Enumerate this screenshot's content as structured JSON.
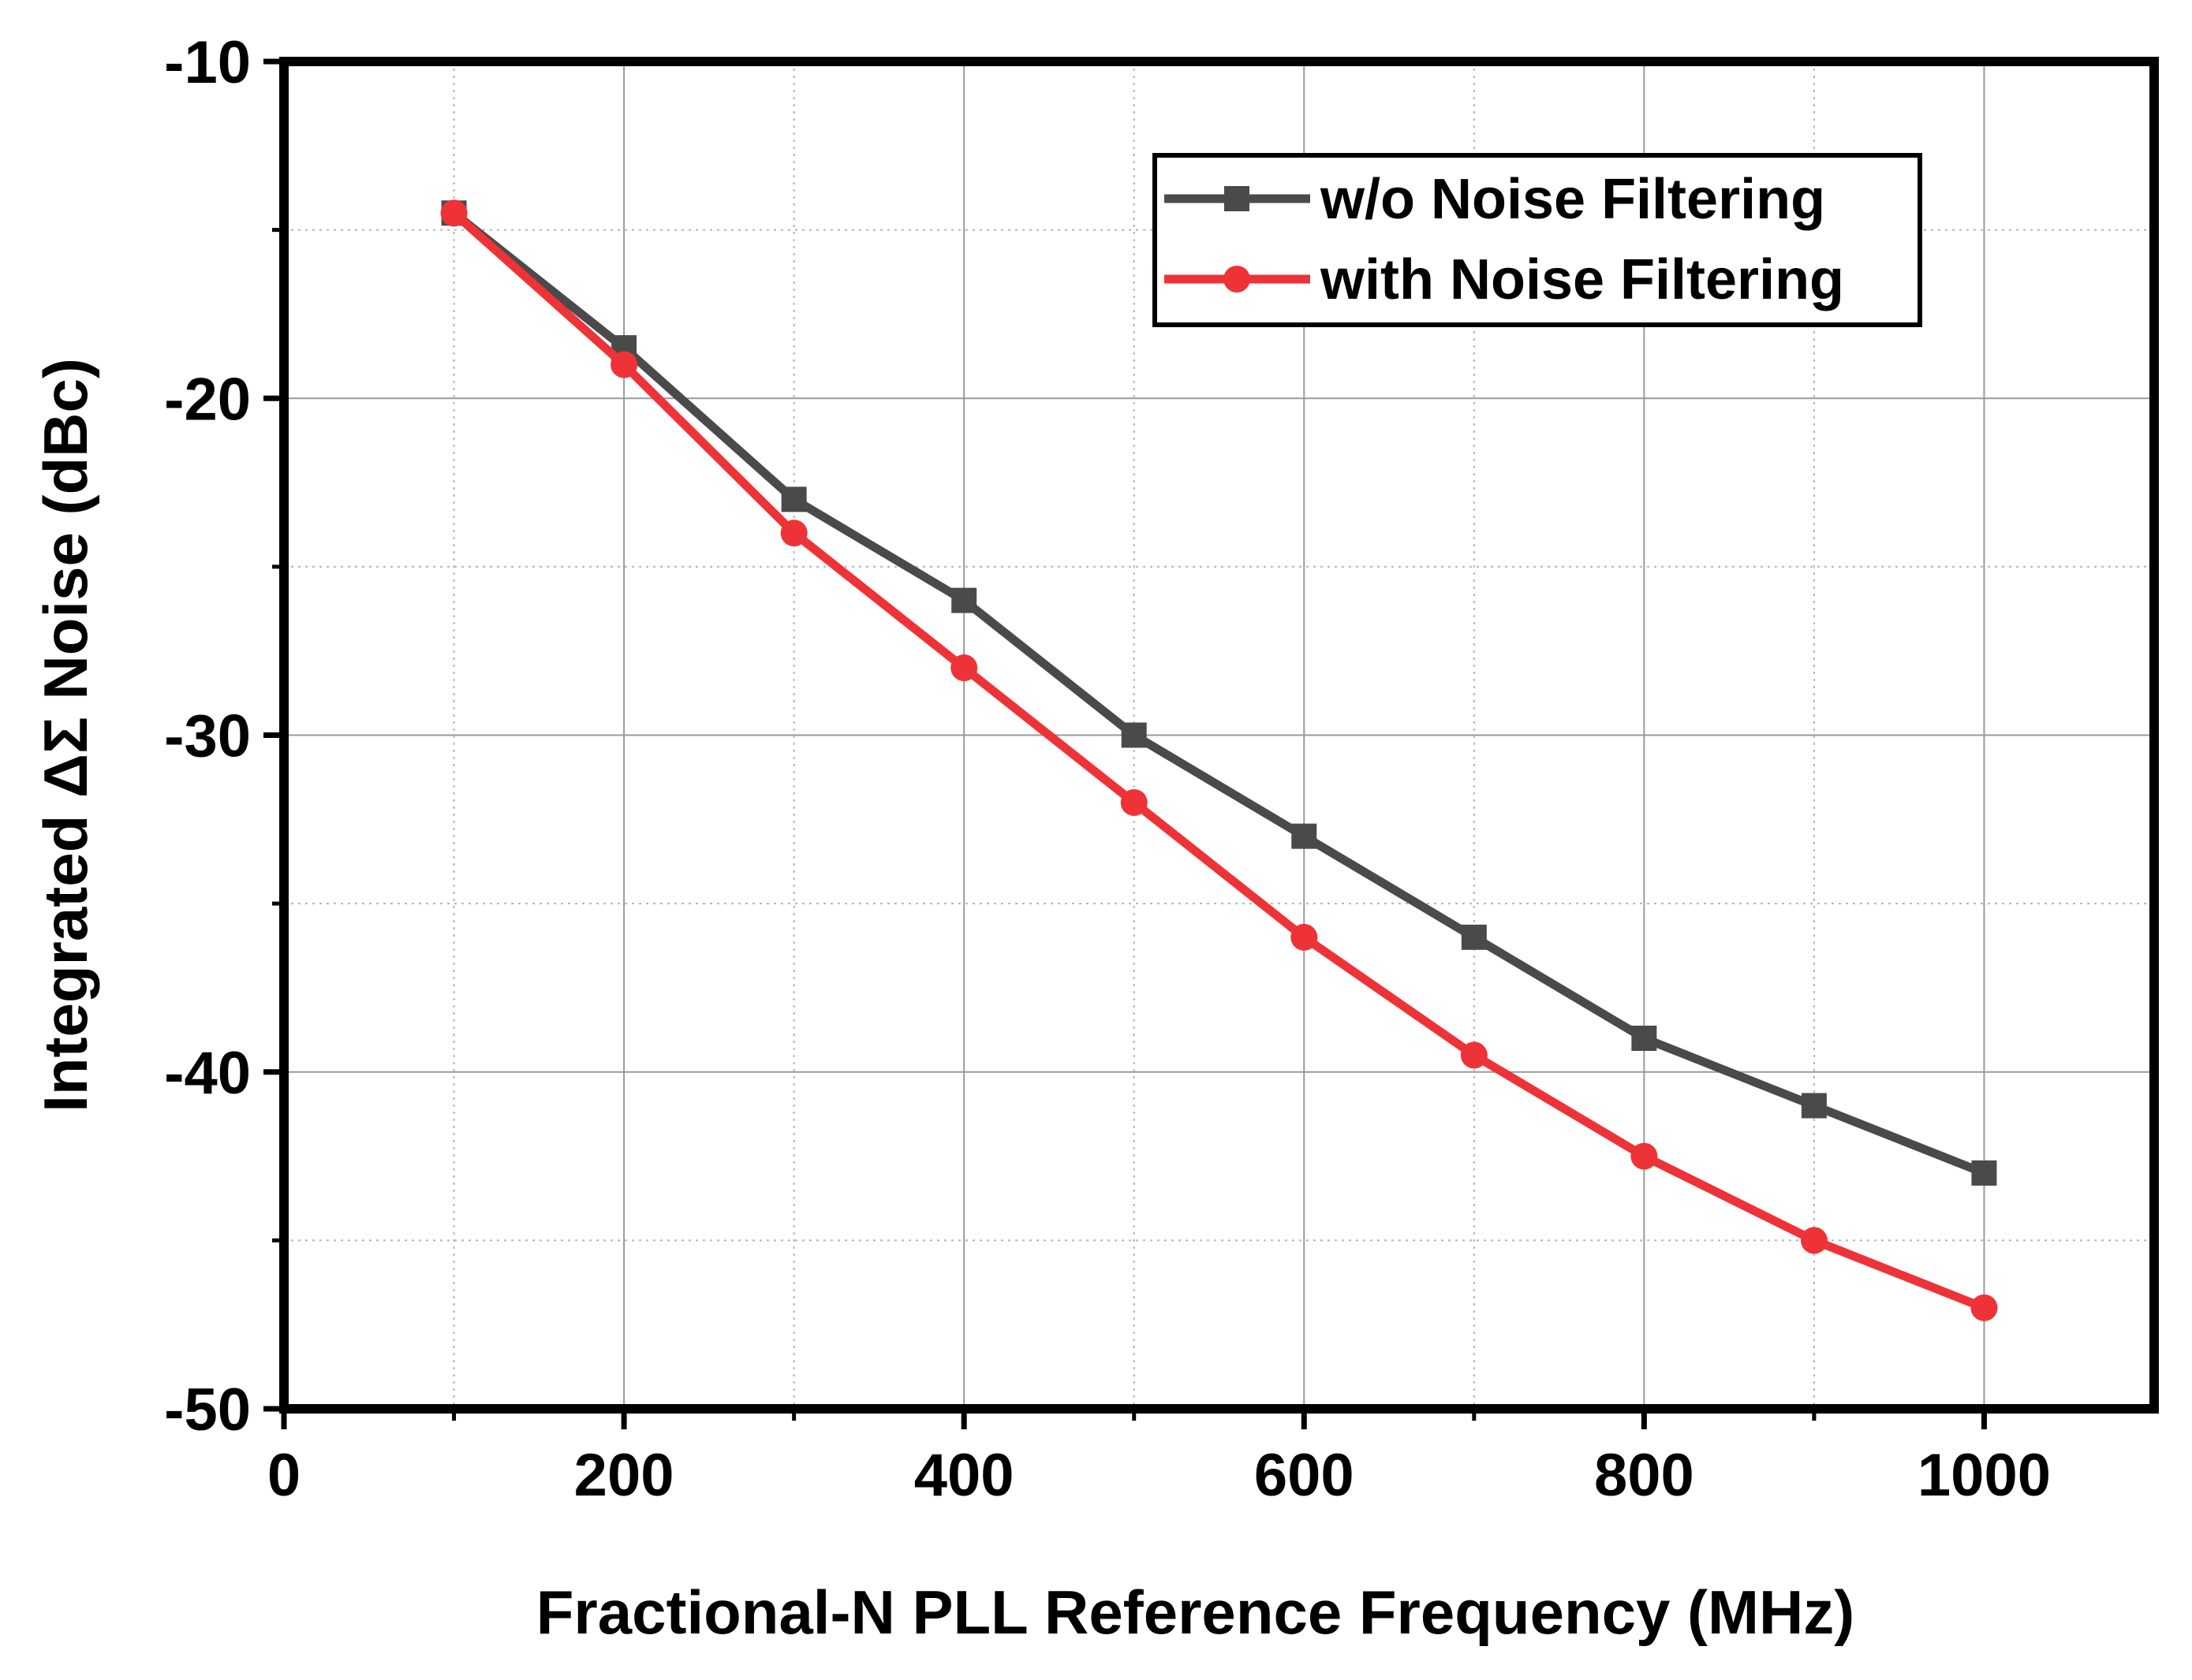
{
  "chart_data": {
    "type": "line",
    "title": "",
    "xlabel": "Fractional-N PLL Reference Frequency (MHz)",
    "ylabel": "Integrated ΔΣ Noise (dBc)",
    "xlim": [
      0,
      1100
    ],
    "ylim": [
      -50,
      -10
    ],
    "xticks": [
      0,
      200,
      400,
      600,
      800,
      1000
    ],
    "yticks": [
      -50,
      -40,
      -30,
      -20,
      -10
    ],
    "x_minor_grid": [
      100,
      300,
      500,
      700,
      900
    ],
    "y_minor_grid": [
      -45,
      -35,
      -25,
      -15
    ],
    "grid": true,
    "legend_position": "top-right",
    "x": [
      100,
      200,
      300,
      400,
      500,
      600,
      700,
      800,
      900,
      1000
    ],
    "series": [
      {
        "name": "w/o Noise Filtering",
        "color": "#4a4a4a",
        "marker": "square",
        "values": [
          -14.5,
          -18.5,
          -23,
          -26,
          -30,
          -33,
          -36,
          -39,
          -41,
          -43
        ]
      },
      {
        "name": "with Noise Filtering",
        "color": "#ee3338",
        "marker": "circle",
        "values": [
          -14.5,
          -19,
          -24,
          -28,
          -32,
          -36,
          -39.5,
          -42.5,
          -45,
          -47
        ]
      }
    ]
  }
}
